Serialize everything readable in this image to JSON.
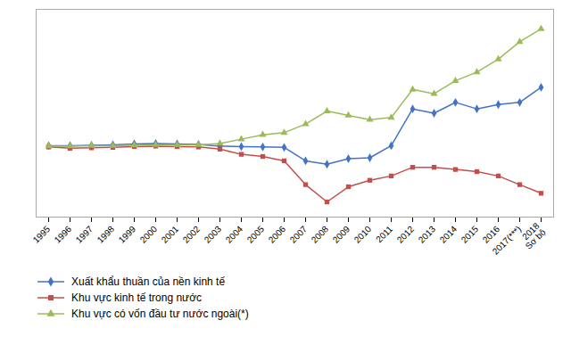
{
  "chart_data": {
    "type": "line",
    "categories": [
      "1995",
      "1996",
      "1997",
      "1998",
      "1999",
      "2000",
      "2001",
      "2002",
      "2003",
      "2004",
      "2005",
      "2006",
      "2007",
      "2008",
      "2009",
      "2010",
      "2011",
      "2012",
      "2013",
      "2014",
      "2015",
      "2016",
      "2017(***)",
      "2018\nSơ bộ"
    ],
    "series": [
      {
        "name": "Xuất khẩu thuần của nền kinh tế",
        "color": "#4472c4",
        "marker": "diamond",
        "values": [
          0.5,
          0.5,
          0.6,
          0.7,
          0.9,
          1.0,
          0.9,
          0.8,
          0.4,
          0.3,
          0.2,
          0.1,
          -3.0,
          -3.8,
          -2.5,
          -2.3,
          0.5,
          9.0,
          8.0,
          10.5,
          9.0,
          10.0,
          10.5,
          14.0
        ]
      },
      {
        "name": "Khu vực kinh tế trong nước",
        "color": "#c0504d",
        "marker": "square",
        "values": [
          0.2,
          -0.1,
          0.0,
          0.1,
          0.3,
          0.4,
          0.3,
          0.2,
          -0.3,
          -1.5,
          -2.0,
          -3.0,
          -8.5,
          -12.5,
          -9.0,
          -7.5,
          -6.5,
          -4.5,
          -4.5,
          -5.0,
          -5.5,
          -6.5,
          -8.5,
          -10.5
        ]
      },
      {
        "name": "Khu vực có vốn đầu tư nước ngoài(*)",
        "color": "#9bbb59",
        "marker": "triangle",
        "values": [
          0.4,
          0.4,
          0.5,
          0.5,
          0.6,
          0.7,
          0.7,
          0.7,
          1.0,
          2.0,
          3.0,
          3.5,
          5.5,
          8.5,
          7.5,
          6.5,
          7.0,
          13.5,
          12.5,
          15.5,
          17.5,
          20.5,
          24.5,
          27.5
        ]
      }
    ],
    "ylim": [
      -16,
      32
    ],
    "grid": false,
    "tick_labels": "x",
    "legend": "bottom"
  }
}
